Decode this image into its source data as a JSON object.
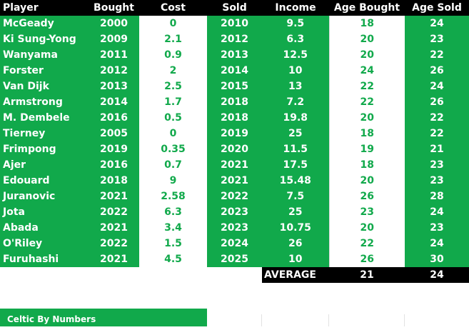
{
  "headers": [
    "Player",
    "Bought",
    "Cost",
    "Sold",
    "Income",
    "Age Bought",
    "Age Sold"
  ],
  "rows": [
    [
      "McGeady",
      "2000",
      "0",
      "2010",
      "9.5",
      "18",
      "24"
    ],
    [
      "Ki Sung-Yong",
      "2009",
      "2.1",
      "2012",
      "6.3",
      "20",
      "23"
    ],
    [
      "Wanyama",
      "2011",
      "0.9",
      "2013",
      "12.5",
      "20",
      "22"
    ],
    [
      "Forster",
      "2012",
      "2",
      "2014",
      "10",
      "24",
      "26"
    ],
    [
      "Van Dijk",
      "2013",
      "2.5",
      "2015",
      "13",
      "22",
      "24"
    ],
    [
      "Armstrong",
      "2014",
      "1.7",
      "2018",
      "7.2",
      "22",
      "26"
    ],
    [
      "M. Dembele",
      "2016",
      "0.5",
      "2018",
      "19.8",
      "20",
      "22"
    ],
    [
      "Tierney",
      "2005",
      "0",
      "2019",
      "25",
      "18",
      "22"
    ],
    [
      "Frimpong",
      "2019",
      "0.35",
      "2020",
      "11.5",
      "19",
      "21"
    ],
    [
      "Ajer",
      "2016",
      "0.7",
      "2021",
      "17.5",
      "18",
      "23"
    ],
    [
      "Edouard",
      "2018",
      "9",
      "2021",
      "15.48",
      "20",
      "23"
    ],
    [
      "Juranovic",
      "2021",
      "2.58",
      "2022",
      "7.5",
      "26",
      "28"
    ],
    [
      "Jota",
      "2022",
      "6.3",
      "2023",
      "25",
      "23",
      "24"
    ],
    [
      "Abada",
      "2021",
      "3.4",
      "2023",
      "10.75",
      "20",
      "23"
    ],
    [
      "O'Riley",
      "2022",
      "1.5",
      "2024",
      "26",
      "22",
      "24"
    ],
    [
      "Furuhashi",
      "2021",
      "4.5",
      "2025",
      "10",
      "26",
      "30"
    ]
  ],
  "average": {
    "label": "AVERAGE",
    "age_bought": "21",
    "age_sold": "24"
  },
  "footer": {
    "title": "Celtic By Numbers"
  },
  "colors": {
    "green": "#11a94b",
    "black": "#000000",
    "white": "#ffffff"
  }
}
